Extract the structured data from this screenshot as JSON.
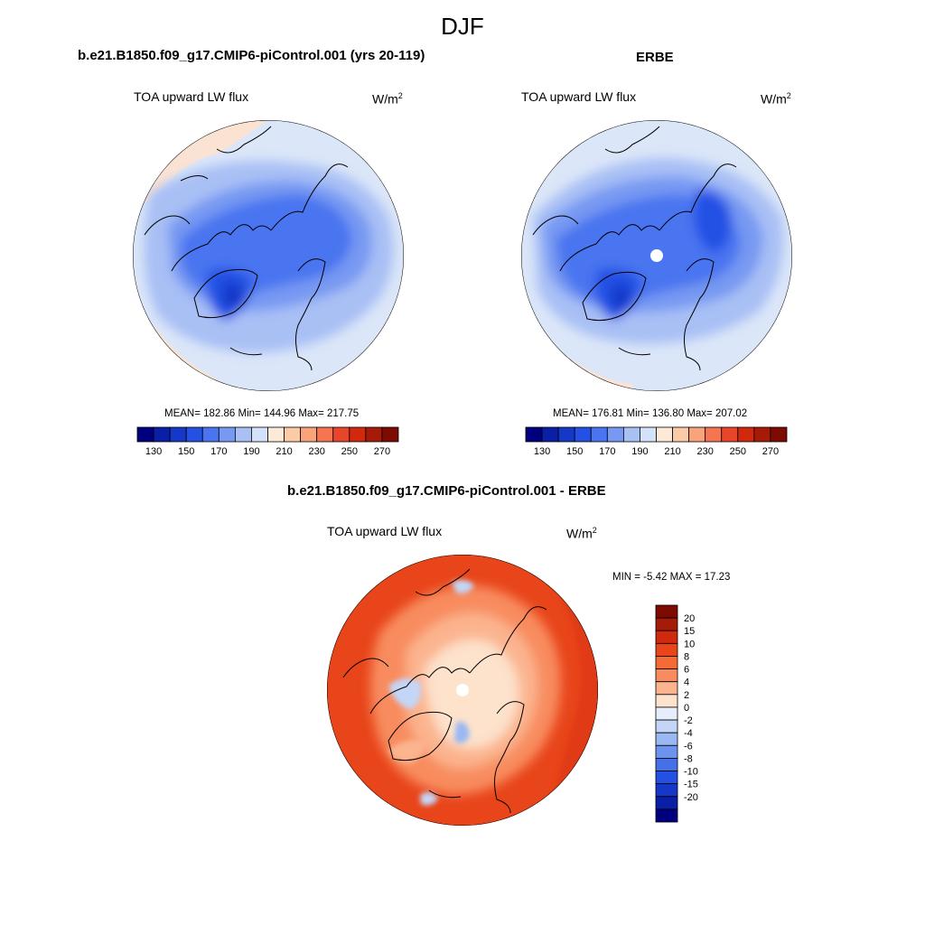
{
  "figure": {
    "season": "DJF",
    "left_panel": {
      "title": "b.e21.B1850.f09_g17.CMIP6-piControl.001 (yrs 20-119)",
      "variable": "TOA upward LW flux",
      "units": "W/m",
      "units_sup": "2",
      "stats": "MEAN= 182.86  Min= 144.96  Max= 217.75"
    },
    "right_panel": {
      "title": "ERBE",
      "variable": "TOA upward LW flux",
      "units": "W/m",
      "units_sup": "2",
      "stats": "MEAN= 176.81  Min= 136.80  Max= 207.02"
    },
    "diff_panel": {
      "title": "b.e21.B1850.f09_g17.CMIP6-piControl.001 - ERBE",
      "variable": "TOA upward LW flux",
      "units": "W/m",
      "units_sup": "2",
      "stats": "MIN =  -5.42 MAX =  17.23"
    }
  },
  "colorbars": {
    "abs_colors": [
      "#00007f",
      "#0a1fa6",
      "#1638c8",
      "#2451e4",
      "#4a74f0",
      "#7799f2",
      "#a9c0f5",
      "#d3e2f8",
      "#fde9d8",
      "#fbcaa7",
      "#f8a37a",
      "#f57550",
      "#e8462a",
      "#d0290e",
      "#a61a08",
      "#7d0b02"
    ],
    "abs_tick_labels": [
      "130",
      "150",
      "170",
      "190",
      "210",
      "230",
      "250",
      "270"
    ],
    "diff_colors": [
      "#7d0b02",
      "#a61a08",
      "#d0290e",
      "#e8451a",
      "#f56a35",
      "#f88c5e",
      "#fbb48e",
      "#fde2cc",
      "#e6eefb",
      "#c4d6f7",
      "#9ab8f2",
      "#6c94ee",
      "#4570e8",
      "#2451e4",
      "#1638c8",
      "#0a1fa6",
      "#00007f"
    ],
    "diff_tick_labels": [
      "20",
      "15",
      "10",
      "8",
      "6",
      "4",
      "2",
      "0",
      "-2",
      "-4",
      "-6",
      "-8",
      "-10",
      "-15",
      "-20"
    ]
  }
}
